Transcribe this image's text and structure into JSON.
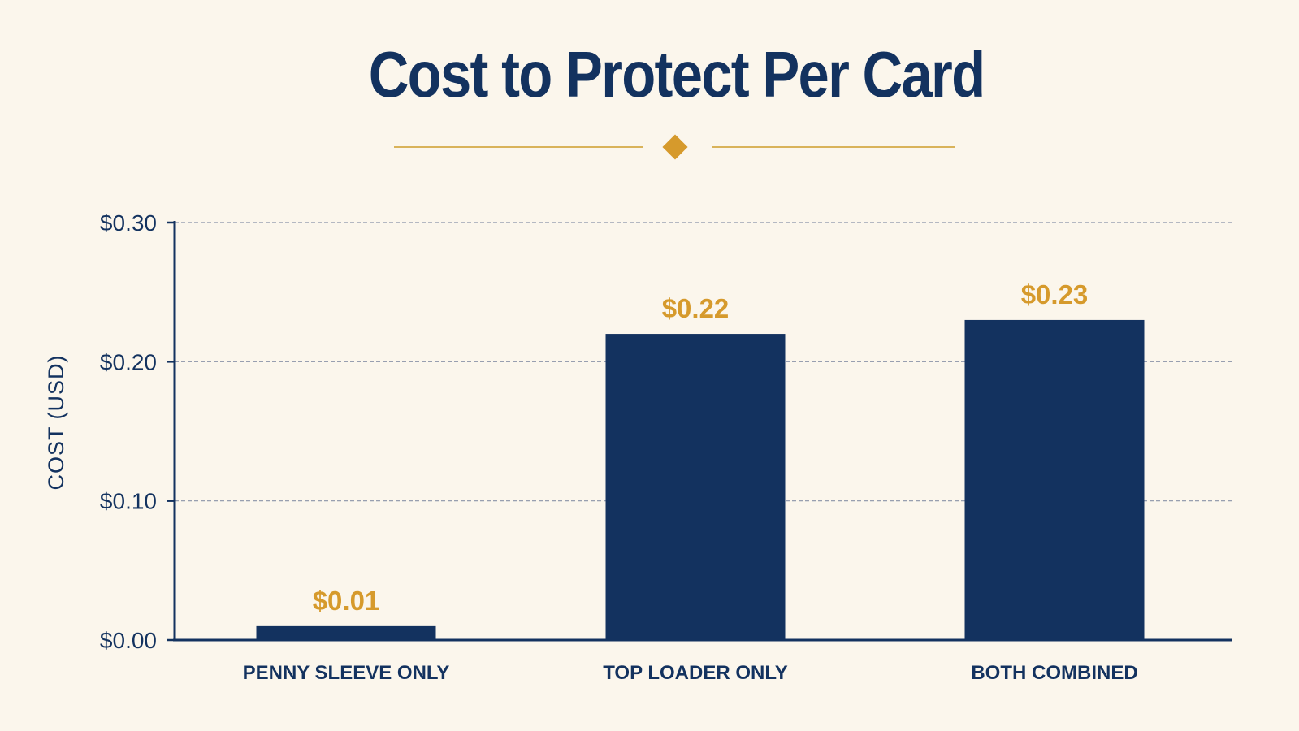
{
  "chart_data": {
    "type": "bar",
    "title": "Cost to Protect Per Card",
    "ylabel": "COST (USD)",
    "xlabel": "",
    "categories": [
      "PENNY SLEEVE ONLY",
      "TOP LOADER ONLY",
      "BOTH COMBINED"
    ],
    "values": [
      0.01,
      0.22,
      0.23
    ],
    "data_labels": [
      "$0.01",
      "$0.22",
      "$0.23"
    ],
    "ylim": [
      0,
      0.3
    ],
    "yticks": [
      0.0,
      0.1,
      0.2,
      0.3
    ],
    "ytick_labels": [
      "$0.00",
      "$0.10",
      "$0.20",
      "$0.30"
    ],
    "grid": true,
    "legend": "none"
  },
  "colors": {
    "background": "#fbf6ec",
    "bar": "#13325f",
    "data_label": "#d69a2c",
    "title": "#13325f",
    "axis": "#13325f",
    "grid": "#8a93a8",
    "divider": "#d9b35a"
  }
}
